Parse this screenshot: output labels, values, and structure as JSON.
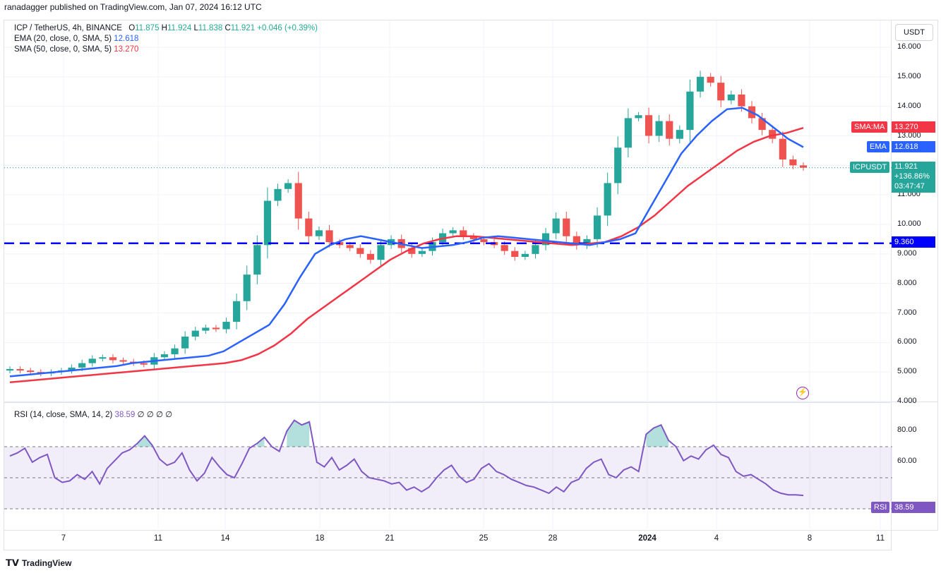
{
  "publisher": "ranadagger published on TradingView.com, Jan 07, 2024 16:12 UTC",
  "legend": {
    "symbol": "ICP / TetherUS, 4h, BINANCE",
    "o_label": "O",
    "o": "11.875",
    "h_label": "H",
    "h": "11.924",
    "l_label": "L",
    "l": "11.838",
    "c_label": "C",
    "c": "11.921",
    "change": "+0.046 (+0.39%)",
    "ema_label": "EMA (20, close, 0, SMA, 5)",
    "ema_value": "12.618",
    "sma_label": "SMA (50, close, 0, SMA, 5)",
    "sma_value": "13.270",
    "rsi_label": "RSI (14, close, SMA, 14, 2)",
    "rsi_value": "38.59",
    "rsi_extra": "∅ ∅ ∅ ∅"
  },
  "currency_button": "USDT",
  "tags": {
    "sma_name": "SMA:MA",
    "sma_value": "13.270",
    "ema_name": "EMA",
    "ema_value": "12.618",
    "symbol_name": "ICPUSDT",
    "symbol_price": "11.921",
    "symbol_change": "+136.86%",
    "symbol_timer": "03:47:47",
    "support_value": "9.360",
    "rsi_name": "RSI",
    "rsi_value": "38.59"
  },
  "footer_brand": "TradingView",
  "colors": {
    "up": "#26a69a",
    "down": "#ef5350",
    "ema": "#2962ff",
    "sma": "#f23645",
    "rsi": "#7e57c2",
    "support": "#0000ff"
  },
  "chart_data": [
    {
      "type": "candlestick",
      "title": "ICP / TetherUS, 4h, BINANCE",
      "price_ticks": [
        "16.000",
        "15.000",
        "14.000",
        "13.000",
        "11.000",
        "10.000",
        "9.000",
        "8.000",
        "7.000",
        "6.000",
        "5.000",
        "4.000"
      ],
      "time_ticks": [
        "7",
        "11",
        "14",
        "18",
        "21",
        "25",
        "28",
        "2024",
        "4",
        "8",
        "11"
      ],
      "ylim": [
        4.0,
        16.5
      ],
      "support_line": 9.36,
      "close_series": [
        5.1,
        5.05,
        5.0,
        4.95,
        5.0,
        5.05,
        5.15,
        5.3,
        5.45,
        5.5,
        5.4,
        5.35,
        5.3,
        5.25,
        5.5,
        5.6,
        5.8,
        6.2,
        6.4,
        6.5,
        6.45,
        6.7,
        7.4,
        8.3,
        9.3,
        10.8,
        11.2,
        11.4,
        10.2,
        9.6,
        9.8,
        9.4,
        9.3,
        9.2,
        9.0,
        8.8,
        9.3,
        9.5,
        9.2,
        9.0,
        9.1,
        9.4,
        9.7,
        9.8,
        9.6,
        9.5,
        9.4,
        9.3,
        9.1,
        8.9,
        9.0,
        9.3,
        9.7,
        10.2,
        9.6,
        9.3,
        9.5,
        10.3,
        11.4,
        12.6,
        13.6,
        13.7,
        13.0,
        13.5,
        12.9,
        13.2,
        14.5,
        15.0,
        14.8,
        14.2,
        14.4,
        14.0,
        13.6,
        13.2,
        12.9,
        12.2,
        12.0,
        11.92
      ],
      "ema20": [
        4.85,
        4.9,
        4.95,
        5.0,
        5.05,
        5.1,
        5.15,
        5.2,
        5.3,
        5.35,
        5.4,
        5.45,
        5.5,
        5.55,
        5.7,
        6.0,
        6.3,
        6.6,
        7.3,
        8.2,
        9.0,
        9.3,
        9.5,
        9.6,
        9.5,
        9.4,
        9.3,
        9.2,
        9.25,
        9.3,
        9.4,
        9.55,
        9.6,
        9.55,
        9.5,
        9.45,
        9.4,
        9.35,
        9.3,
        9.4,
        9.5,
        9.7,
        10.6,
        11.5,
        12.4,
        13.0,
        13.5,
        13.9,
        13.95,
        13.7,
        13.3,
        12.9,
        12.618
      ],
      "sma50": [
        4.65,
        4.7,
        4.75,
        4.8,
        4.85,
        4.9,
        4.95,
        5.0,
        5.05,
        5.1,
        5.15,
        5.2,
        5.25,
        5.3,
        5.4,
        5.6,
        5.9,
        6.3,
        6.8,
        7.2,
        7.6,
        8.0,
        8.4,
        8.8,
        9.1,
        9.35,
        9.5,
        9.6,
        9.6,
        9.55,
        9.5,
        9.45,
        9.4,
        9.35,
        9.3,
        9.35,
        9.4,
        9.6,
        9.9,
        10.3,
        10.8,
        11.3,
        11.7,
        12.1,
        12.5,
        12.8,
        13.0,
        13.1,
        13.27
      ]
    },
    {
      "type": "line",
      "title": "RSI (14, close, SMA, 14, 2)",
      "rsi_ticks": [
        "80.00",
        "60.00"
      ],
      "ylim": [
        20,
        95
      ],
      "overbought": 70,
      "middle": 50,
      "oversold": 30,
      "values": [
        64,
        66,
        69,
        60,
        63,
        65,
        50,
        47,
        48,
        52,
        49,
        54,
        46,
        56,
        61,
        66,
        68,
        72,
        77,
        71,
        62,
        58,
        60,
        66,
        55,
        48,
        53,
        63,
        57,
        52,
        50,
        59,
        69,
        72,
        76,
        70,
        67,
        80,
        87,
        84,
        86,
        60,
        57,
        63,
        55,
        58,
        62,
        54,
        50,
        49,
        48,
        46,
        47,
        42,
        44,
        41,
        44,
        50,
        55,
        58,
        51,
        47,
        49,
        56,
        59,
        54,
        52,
        49,
        47,
        45,
        44,
        42,
        40,
        44,
        41,
        47,
        49,
        56,
        60,
        62,
        52,
        50,
        55,
        57,
        54,
        78,
        82,
        84,
        74,
        70,
        61,
        64,
        62,
        68,
        71,
        65,
        63,
        54,
        51,
        52,
        49,
        46,
        42,
        40,
        39,
        39,
        38.59
      ]
    }
  ]
}
